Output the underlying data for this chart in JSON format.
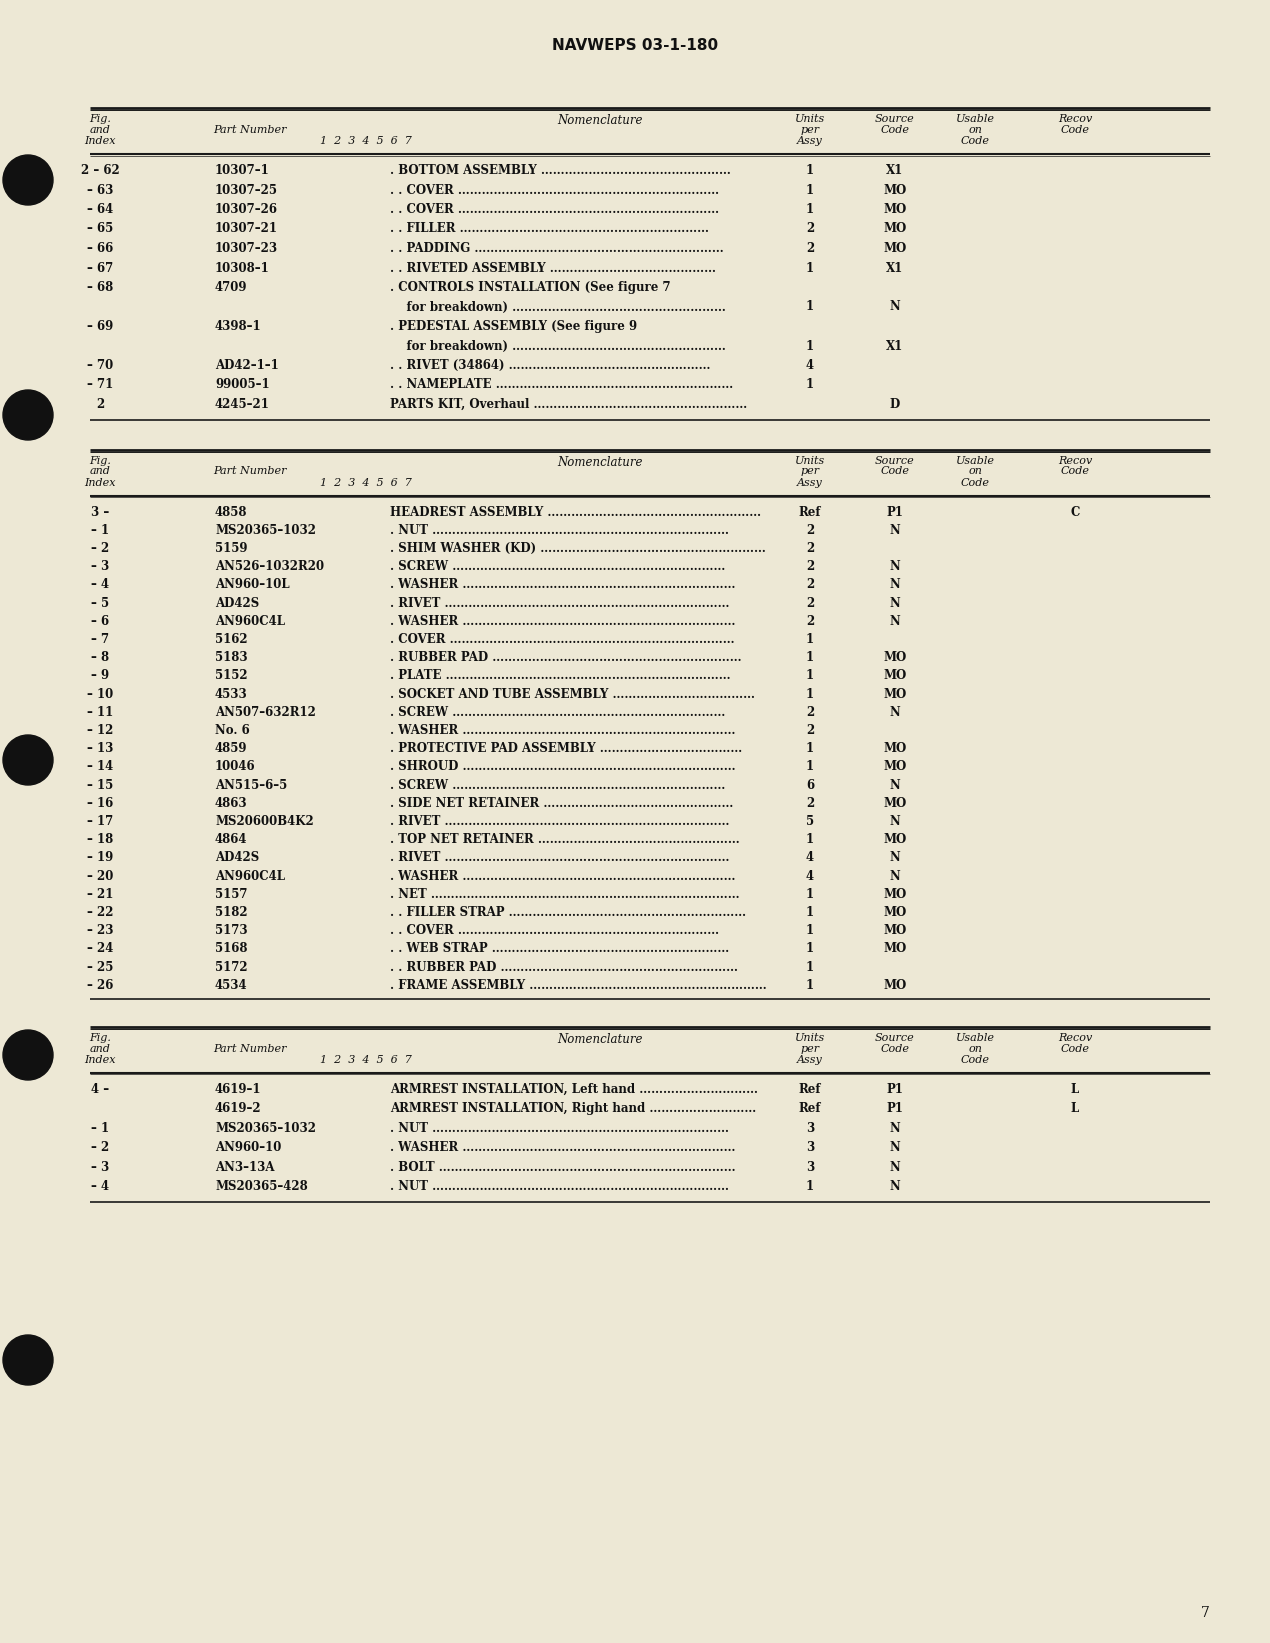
{
  "page_color": "#ede8d5",
  "header_text": "NAVWEPS 03-1-180",
  "page_number": "7",
  "table1": {
    "rows": [
      [
        "2 – 62",
        "10307–1",
        ". BOTTOM ASSEMBLY …………………………………………",
        "1",
        "X1",
        "",
        ""
      ],
      [
        "– 63",
        "10307–25",
        ". . COVER …………………………………………………………",
        "1",
        "MO",
        "",
        ""
      ],
      [
        "– 64",
        "10307–26",
        ". . COVER …………………………………………………………",
        "1",
        "MO",
        "",
        ""
      ],
      [
        "– 65",
        "10307–21",
        ". . FILLER ………………………………………………………",
        "2",
        "MO",
        "",
        ""
      ],
      [
        "– 66",
        "10307–23",
        ". . PADDING ………………………………………………………",
        "2",
        "MO",
        "",
        ""
      ],
      [
        "– 67",
        "10308–1",
        ". . RIVETED ASSEMBLY ……………………………………",
        "1",
        "X1",
        "",
        ""
      ],
      [
        "– 68",
        "4709",
        ". CONTROLS INSTALLATION (See figure 7",
        null,
        null,
        "",
        ""
      ],
      [
        "",
        "",
        "    for breakdown) ………………………………………………",
        "1",
        "N",
        "",
        ""
      ],
      [
        "– 69",
        "4398–1",
        ". PEDESTAL ASSEMBLY (See figure 9",
        null,
        null,
        "",
        ""
      ],
      [
        "",
        "",
        "    for breakdown) ………………………………………………",
        "1",
        "X1",
        "",
        ""
      ],
      [
        "– 70",
        "AD42–1–1",
        ". . RIVET (34864) ……………………………………………",
        "4",
        "",
        "",
        ""
      ],
      [
        "– 71",
        "99005–1",
        ". . NAMEPLATE ……………………………………………………",
        "1",
        "",
        "",
        ""
      ],
      [
        "2",
        "4245–21",
        "PARTS KIT, Overhaul ………………………………………………",
        "",
        "D",
        "",
        ""
      ]
    ]
  },
  "table2": {
    "rows": [
      [
        "3 –",
        "4858",
        "HEADREST ASSEMBLY ………………………………………………",
        "Ref",
        "P1",
        "",
        "C"
      ],
      [
        "– 1",
        "MS20365–1032",
        ". NUT …………………………………………………………………",
        "2",
        "N",
        "",
        ""
      ],
      [
        "– 2",
        "5159",
        ". SHIM WASHER (KD) …………………………………………………",
        "2",
        "",
        "",
        ""
      ],
      [
        "– 3",
        "AN526–1032R20",
        ". SCREW ……………………………………………………………",
        "2",
        "N",
        "",
        ""
      ],
      [
        "– 4",
        "AN960–10L",
        ". WASHER ……………………………………………………………",
        "2",
        "N",
        "",
        ""
      ],
      [
        "– 5",
        "AD42S",
        ". RIVET ………………………………………………………………",
        "2",
        "N",
        "",
        ""
      ],
      [
        "– 6",
        "AN960C4L",
        ". WASHER ……………………………………………………………",
        "2",
        "N",
        "",
        ""
      ],
      [
        "– 7",
        "5162",
        ". COVER ………………………………………………………………",
        "1",
        "",
        "",
        ""
      ],
      [
        "– 8",
        "5183",
        ". RUBBER PAD ………………………………………………………",
        "1",
        "MO",
        "",
        ""
      ],
      [
        "– 9",
        "5152",
        ". PLATE ………………………………………………………………",
        "1",
        "MO",
        "",
        ""
      ],
      [
        "– 10",
        "4533",
        ". SOCKET AND TUBE ASSEMBLY ………………………………",
        "1",
        "MO",
        "",
        ""
      ],
      [
        "– 11",
        "AN507–632R12",
        ". SCREW ……………………………………………………………",
        "2",
        "N",
        "",
        ""
      ],
      [
        "– 12",
        "No. 6",
        ". WASHER ……………………………………………………………",
        "2",
        "",
        "",
        ""
      ],
      [
        "– 13",
        "4859",
        ". PROTECTIVE PAD ASSEMBLY ………………………………",
        "1",
        "MO",
        "",
        ""
      ],
      [
        "– 14",
        "10046",
        ". SHROUD ……………………………………………………………",
        "1",
        "MO",
        "",
        ""
      ],
      [
        "– 15",
        "AN515–6–5",
        ". SCREW ……………………………………………………………",
        "6",
        "N",
        "",
        ""
      ],
      [
        "– 16",
        "4863",
        ". SIDE NET RETAINER …………………………………………",
        "2",
        "MO",
        "",
        ""
      ],
      [
        "– 17",
        "MS20600B4K2",
        ". RIVET ………………………………………………………………",
        "5",
        "N",
        "",
        ""
      ],
      [
        "– 18",
        "4864",
        ". TOP NET RETAINER ……………………………………………",
        "1",
        "MO",
        "",
        ""
      ],
      [
        "– 19",
        "AD42S",
        ". RIVET ………………………………………………………………",
        "4",
        "N",
        "",
        ""
      ],
      [
        "– 20",
        "AN960C4L",
        ". WASHER ……………………………………………………………",
        "4",
        "N",
        "",
        ""
      ],
      [
        "– 21",
        "5157",
        ". NET ……………………………………………………………………",
        "1",
        "MO",
        "",
        ""
      ],
      [
        "– 22",
        "5182",
        ". . FILLER STRAP ……………………………………………………",
        "1",
        "MO",
        "",
        ""
      ],
      [
        "– 23",
        "5173",
        ". . COVER …………………………………………………………",
        "1",
        "MO",
        "",
        ""
      ],
      [
        "– 24",
        "5168",
        ". . WEB STRAP ……………………………………………………",
        "1",
        "MO",
        "",
        ""
      ],
      [
        "– 25",
        "5172",
        ". . RUBBER PAD ……………………………………………………",
        "1",
        "",
        "",
        ""
      ],
      [
        "– 26",
        "4534",
        ". FRAME ASSEMBLY ……………………………………………………",
        "1",
        "MO",
        "",
        ""
      ]
    ]
  },
  "table3": {
    "rows": [
      [
        "4 –",
        "4619–1",
        "ARMREST INSTALLATION, Left hand …………………………",
        "Ref",
        "P1",
        "",
        "L"
      ],
      [
        "",
        "4619–2",
        "ARMREST INSTALLATION, Right hand ………………………",
        "Ref",
        "P1",
        "",
        "L"
      ],
      [
        "– 1",
        "MS20365–1032",
        ". NUT …………………………………………………………………",
        "3",
        "N",
        "",
        ""
      ],
      [
        "– 2",
        "AN960–10",
        ". WASHER ……………………………………………………………",
        "3",
        "N",
        "",
        ""
      ],
      [
        "– 3",
        "AN3–13A",
        ". BOLT …………………………………………………………………",
        "3",
        "N",
        "",
        ""
      ],
      [
        "– 4",
        "MS20365–428",
        ". NUT …………………………………………………………………",
        "1",
        "N",
        "",
        ""
      ]
    ]
  }
}
